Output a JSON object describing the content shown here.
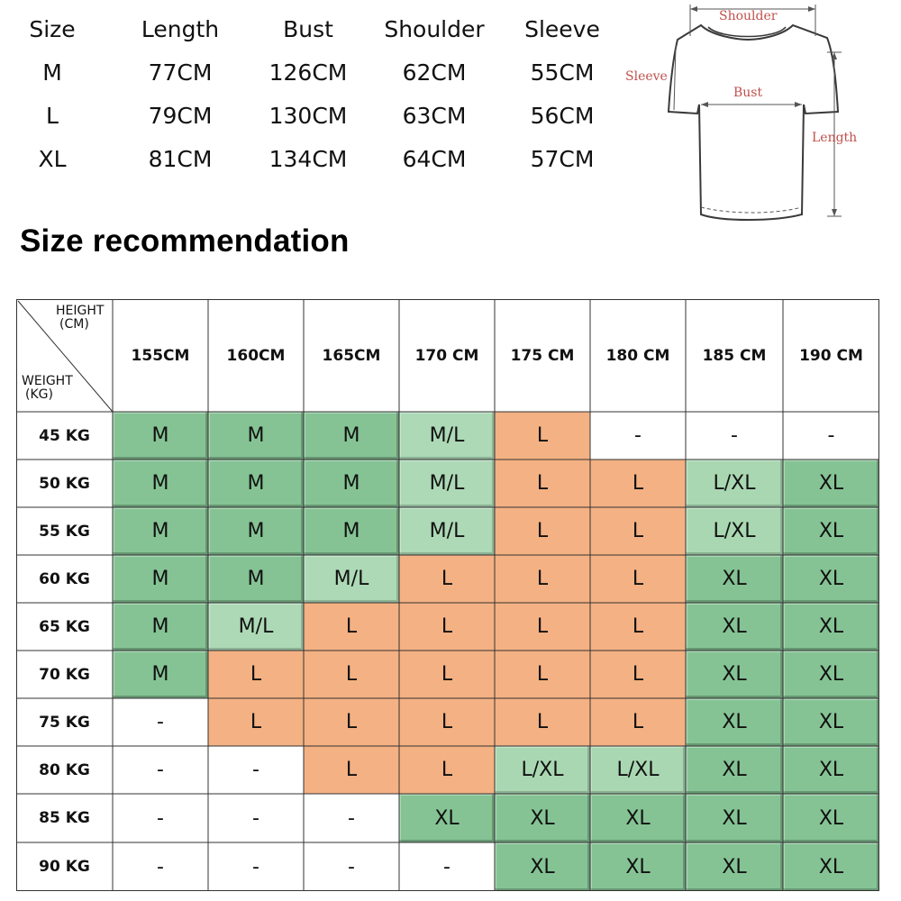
{
  "size_chart": {
    "headers": [
      "Size",
      "Length",
      "Bust",
      "Shoulder",
      "Sleeve"
    ],
    "rows": [
      [
        "M",
        "77CM",
        "126CM",
        "62CM",
        "55CM"
      ],
      [
        "L",
        "79CM",
        "130CM",
        "63CM",
        "56CM"
      ],
      [
        "XL",
        "81CM",
        "134CM",
        "64CM",
        "57CM"
      ]
    ]
  },
  "diagram": {
    "shoulder": "Shoulder",
    "sleeve": "Sleeve",
    "bust": "Bust",
    "length": "Length",
    "label_color": "#c0504d"
  },
  "title": "Size recommendation",
  "recommendation": {
    "corner_top": [
      "HEIGHT",
      "(CM)"
    ],
    "corner_bottom": [
      "WEIGHT",
      "(KG)"
    ],
    "heights": [
      "155CM",
      "160CM",
      "165CM",
      "170 CM",
      "175 CM",
      "180 CM",
      "185 CM",
      "190 CM"
    ],
    "weights": [
      "45 KG",
      "50 KG",
      "55 KG",
      "60 KG",
      "65 KG",
      "70 KG",
      "75 KG",
      "80 KG",
      "85 KG",
      "90 KG"
    ],
    "cells": [
      [
        "M",
        "M",
        "M",
        "M/L",
        "L",
        "-",
        "-",
        "-"
      ],
      [
        "M",
        "M",
        "M",
        "M/L",
        "L",
        "L",
        "L/XL",
        "XL"
      ],
      [
        "M",
        "M",
        "M",
        "M/L",
        "L",
        "L",
        "L/XL",
        "XL"
      ],
      [
        "M",
        "M",
        "M/L",
        "L",
        "L",
        "L",
        "XL",
        "XL"
      ],
      [
        "M",
        "M/L",
        "L",
        "L",
        "L",
        "L",
        "XL",
        "XL"
      ],
      [
        "M",
        "L",
        "L",
        "L",
        "L",
        "L",
        "XL",
        "XL"
      ],
      [
        "-",
        "L",
        "L",
        "L",
        "L",
        "L",
        "XL",
        "XL"
      ],
      [
        "-",
        "-",
        "L",
        "L",
        "L/XL",
        "L/XL",
        "XL",
        "XL"
      ],
      [
        "-",
        "-",
        "-",
        "XL",
        "XL",
        "XL",
        "XL",
        "XL"
      ],
      [
        "-",
        "-",
        "-",
        "-",
        "XL",
        "XL",
        "XL",
        "XL"
      ]
    ],
    "colors": {
      "M": "#85c394",
      "M/L": "#add9b6",
      "L": "#f4b183",
      "L/XL": "#a9d7b1",
      "XL": "#85c394"
    }
  }
}
